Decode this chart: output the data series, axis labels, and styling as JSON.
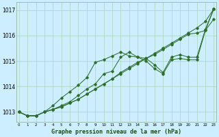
{
  "title": "Graphe pression niveau de la mer (hPa)",
  "bg_color": "#cceeff",
  "grid_color": "#b0d8c8",
  "line_color": "#2d6e2d",
  "ylim": [
    1012.6,
    1017.3
  ],
  "yticks": [
    1013,
    1014,
    1015,
    1016,
    1017
  ],
  "xlim": [
    -0.3,
    23.3
  ],
  "x_ticks": [
    0,
    1,
    2,
    3,
    4,
    5,
    6,
    7,
    8,
    9,
    10,
    11,
    12,
    13,
    14,
    15,
    16,
    17,
    18,
    19,
    20,
    21,
    22,
    23
  ],
  "series": [
    [
      1013.0,
      1012.85,
      1012.85,
      1013.0,
      1013.1,
      1013.2,
      1013.35,
      1013.5,
      1013.7,
      1013.9,
      1014.1,
      1014.3,
      1014.55,
      1014.75,
      1014.95,
      1015.1,
      1015.3,
      1015.5,
      1015.7,
      1015.9,
      1016.1,
      1016.3,
      1016.55,
      1017.05
    ],
    [
      1013.0,
      1012.85,
      1012.85,
      1013.0,
      1013.25,
      1013.55,
      1013.8,
      1014.05,
      1014.35,
      1014.95,
      1015.05,
      1015.2,
      1015.35,
      1015.2,
      1015.15,
      1015.0,
      1014.7,
      1014.5,
      1015.05,
      1015.1,
      1015.05,
      1015.05,
      1016.2,
      1017.05
    ],
    [
      1013.0,
      1012.85,
      1012.85,
      1013.0,
      1013.1,
      1013.25,
      1013.4,
      1013.65,
      1013.9,
      1014.1,
      1014.5,
      1014.6,
      1015.15,
      1015.35,
      1015.15,
      1015.1,
      1014.85,
      1014.55,
      1015.15,
      1015.25,
      1015.15,
      1015.15,
      1016.25,
      1017.05
    ],
    [
      1013.0,
      1012.85,
      1012.85,
      1013.0,
      1013.1,
      1013.2,
      1013.35,
      1013.5,
      1013.7,
      1013.9,
      1014.1,
      1014.3,
      1014.5,
      1014.7,
      1014.9,
      1015.1,
      1015.25,
      1015.45,
      1015.65,
      1015.85,
      1016.05,
      1016.1,
      1016.2,
      1016.65
    ]
  ]
}
